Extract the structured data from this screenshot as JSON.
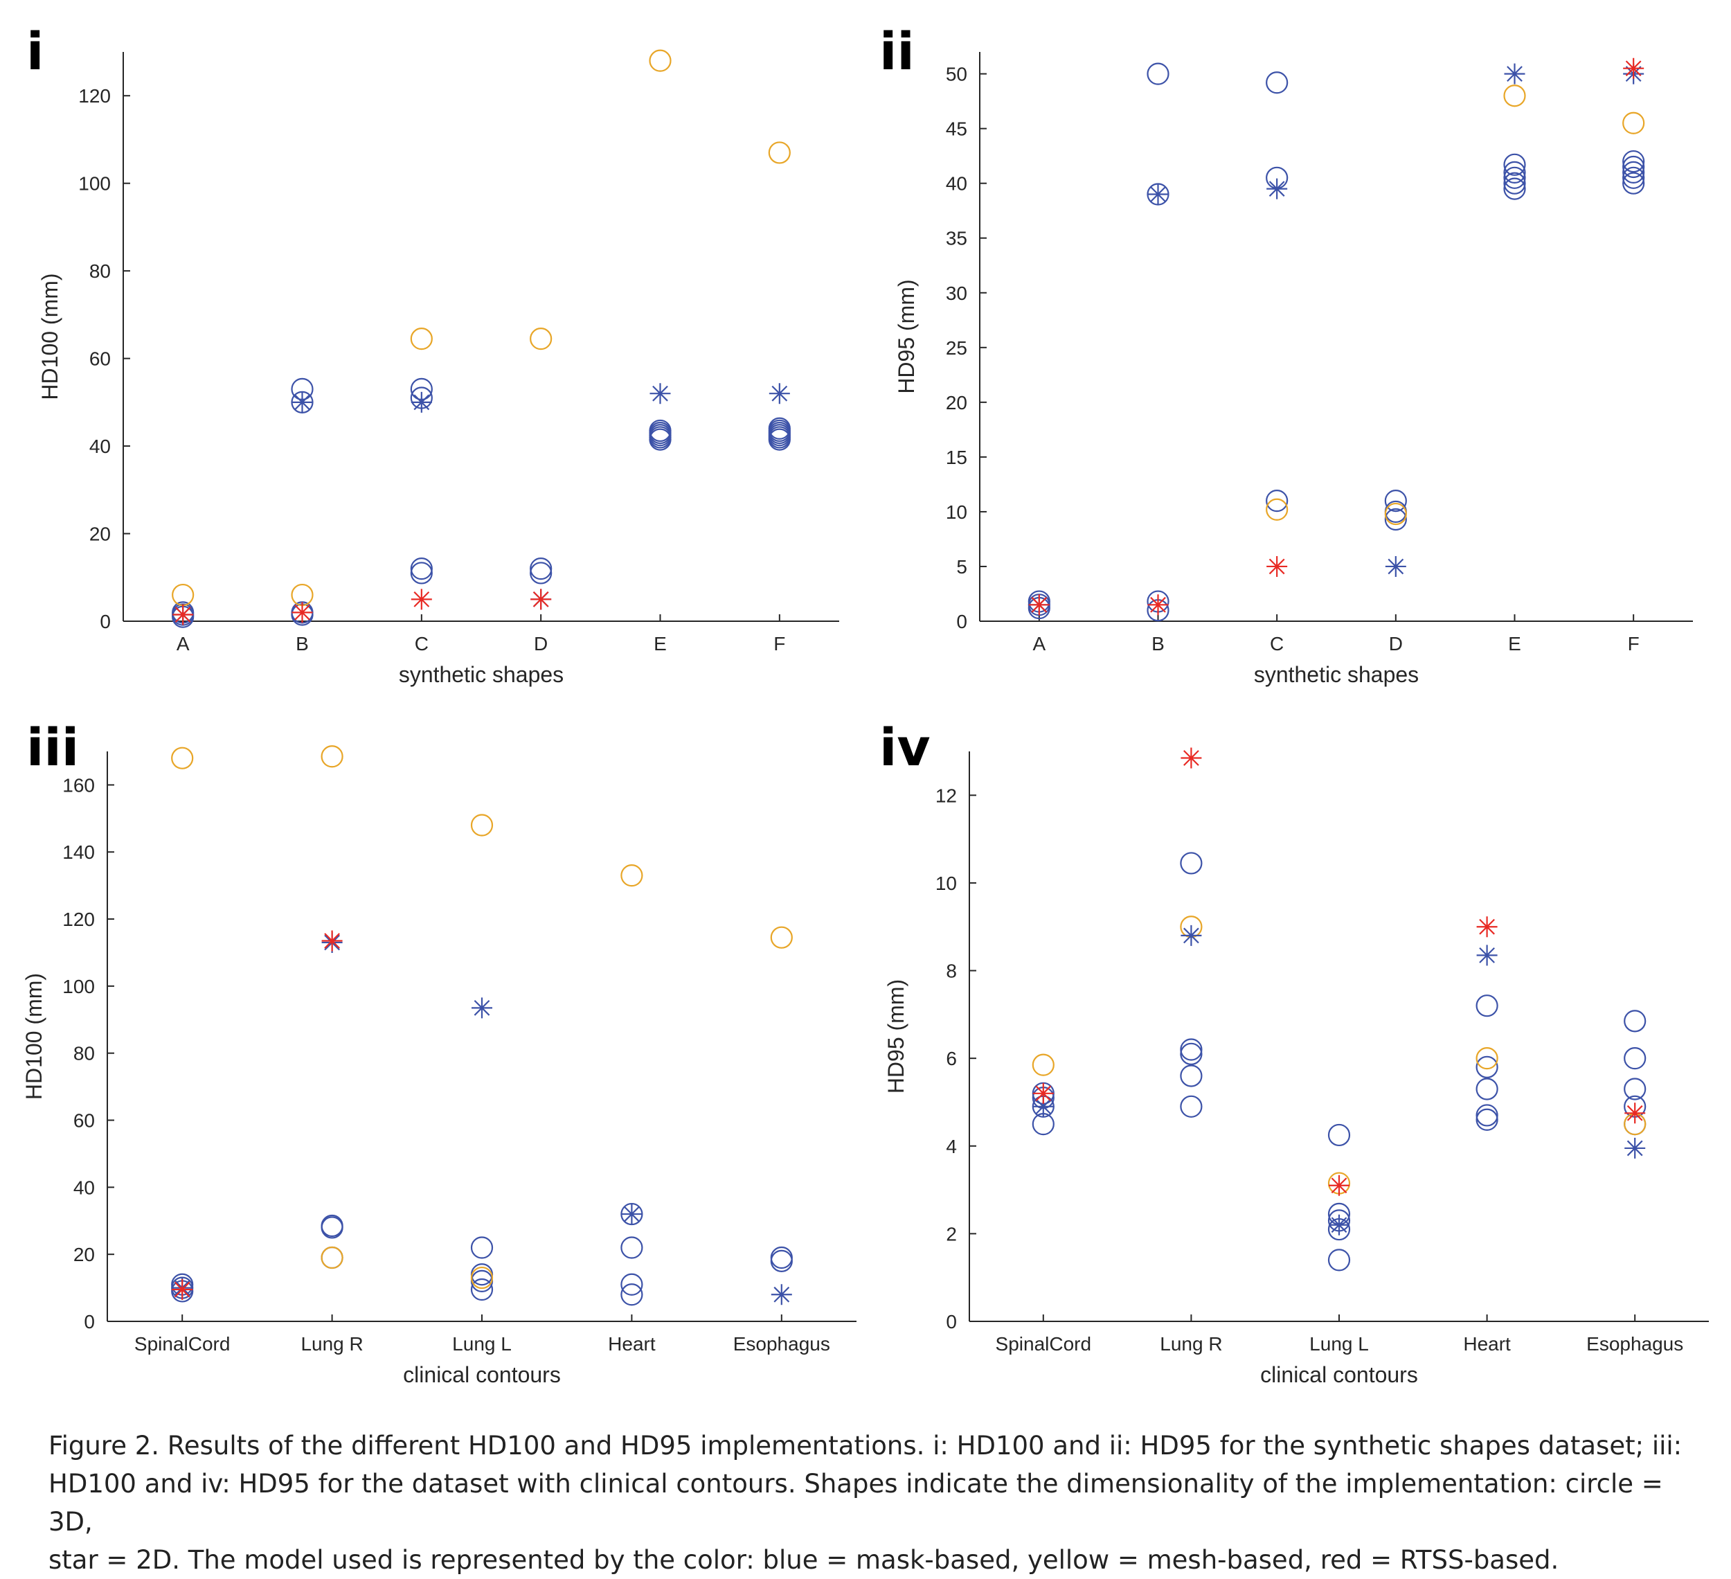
{
  "figure": {
    "caption_lines": [
      "Figure 2. Results of the different HD100 and HD95 implementations. i: HD100 and ii: HD95 for the synthetic shapes dataset; iii:",
      "HD100 and iv: HD95 for the dataset with clinical contours. Shapes indicate the dimensionality of the implementation: circle = 3D,",
      "star = 2D. The model used is represented by the color: blue = mask-based, yellow = mesh-based, red = RTSS-based."
    ]
  },
  "colors": {
    "mask": "#3c52a8",
    "mesh": "#e8a628",
    "rtss": "#e82a24"
  },
  "chart_data": [
    {
      "panel": "i",
      "type": "scatter",
      "xlabel": "synthetic shapes",
      "ylabel": "HD100 (mm)",
      "categories": [
        "A",
        "B",
        "C",
        "D",
        "E",
        "F"
      ],
      "ylim": [
        0,
        130
      ],
      "yticks": [
        0,
        20,
        40,
        60,
        80,
        100,
        120
      ],
      "series": [
        {
          "model": "mask",
          "marker": "circle",
          "points": [
            [
              "A",
              1
            ],
            [
              "A",
              1.5
            ],
            [
              "A",
              2
            ],
            [
              "B",
              1.5
            ],
            [
              "B",
              2
            ],
            [
              "B",
              50
            ],
            [
              "B",
              53
            ],
            [
              "C",
              11
            ],
            [
              "C",
              12
            ],
            [
              "C",
              51
            ],
            [
              "C",
              53
            ],
            [
              "D",
              11
            ],
            [
              "D",
              12
            ],
            [
              "E",
              41.5
            ],
            [
              "E",
              42
            ],
            [
              "E",
              42.5
            ],
            [
              "E",
              43
            ],
            [
              "E",
              43.5
            ],
            [
              "F",
              41.5
            ],
            [
              "F",
              42
            ],
            [
              "F",
              42.5
            ],
            [
              "F",
              43
            ],
            [
              "F",
              43.5
            ],
            [
              "F",
              44
            ]
          ]
        },
        {
          "model": "mesh",
          "marker": "circle",
          "points": [
            [
              "A",
              6
            ],
            [
              "B",
              6
            ],
            [
              "C",
              64.5
            ],
            [
              "D",
              64.5
            ],
            [
              "E",
              128
            ],
            [
              "F",
              107
            ]
          ]
        },
        {
          "model": "mask",
          "marker": "star",
          "points": [
            [
              "A",
              1.5
            ],
            [
              "B",
              50
            ],
            [
              "C",
              50
            ],
            [
              "D",
              5
            ],
            [
              "E",
              52
            ],
            [
              "F",
              52
            ]
          ]
        },
        {
          "model": "rtss",
          "marker": "star",
          "points": [
            [
              "A",
              1.5
            ],
            [
              "B",
              2
            ],
            [
              "C",
              5
            ],
            [
              "D",
              5
            ]
          ]
        }
      ]
    },
    {
      "panel": "ii",
      "type": "scatter",
      "xlabel": "synthetic shapes",
      "ylabel": "HD95 (mm)",
      "categories": [
        "A",
        "B",
        "C",
        "D",
        "E",
        "F"
      ],
      "ylim": [
        0,
        52
      ],
      "yticks": [
        0,
        5,
        10,
        15,
        20,
        25,
        30,
        35,
        40,
        45,
        50
      ],
      "series": [
        {
          "model": "mask",
          "marker": "circle",
          "points": [
            [
              "A",
              1.2
            ],
            [
              "A",
              1.5
            ],
            [
              "A",
              1.8
            ],
            [
              "B",
              1
            ],
            [
              "B",
              1.8
            ],
            [
              "B",
              39
            ],
            [
              "B",
              50
            ],
            [
              "C",
              11
            ],
            [
              "C",
              40.5
            ],
            [
              "C",
              49.2
            ],
            [
              "D",
              9.3
            ],
            [
              "D",
              10
            ],
            [
              "D",
              11
            ],
            [
              "E",
              39.5
            ],
            [
              "E",
              40
            ],
            [
              "E",
              40.5
            ],
            [
              "E",
              41
            ],
            [
              "E",
              41.7
            ],
            [
              "F",
              40
            ],
            [
              "F",
              40.5
            ],
            [
              "F",
              41
            ],
            [
              "F",
              41.5
            ],
            [
              "F",
              42
            ]
          ]
        },
        {
          "model": "mesh",
          "marker": "circle",
          "points": [
            [
              "C",
              10.2
            ],
            [
              "D",
              9.8
            ],
            [
              "E",
              48
            ],
            [
              "F",
              45.5
            ]
          ]
        },
        {
          "model": "mask",
          "marker": "star",
          "points": [
            [
              "A",
              1.5
            ],
            [
              "B",
              39
            ],
            [
              "C",
              39.5
            ],
            [
              "D",
              5
            ],
            [
              "E",
              50
            ],
            [
              "F",
              50
            ]
          ]
        },
        {
          "model": "rtss",
          "marker": "star",
          "points": [
            [
              "A",
              1.5
            ],
            [
              "B",
              1.5
            ],
            [
              "C",
              5
            ],
            [
              "F",
              50.5
            ]
          ]
        }
      ]
    },
    {
      "panel": "iii",
      "type": "scatter",
      "xlabel": "clinical contours",
      "ylabel": "HD100 (mm)",
      "categories": [
        "SpinalCord",
        "Lung R",
        "Lung L",
        "Heart",
        "Esophagus"
      ],
      "ylim": [
        0,
        170
      ],
      "yticks": [
        0,
        20,
        40,
        60,
        80,
        100,
        120,
        140,
        160
      ],
      "series": [
        {
          "model": "mask",
          "marker": "circle",
          "points": [
            [
              "SpinalCord",
              9
            ],
            [
              "SpinalCord",
              10
            ],
            [
              "SpinalCord",
              11
            ],
            [
              "Lung R",
              28
            ],
            [
              "Lung R",
              28.5
            ],
            [
              "Lung R",
              19
            ],
            [
              "Lung L",
              9.5
            ],
            [
              "Lung L",
              12
            ],
            [
              "Lung L",
              14
            ],
            [
              "Lung L",
              22
            ],
            [
              "Heart",
              8
            ],
            [
              "Heart",
              11
            ],
            [
              "Heart",
              22
            ],
            [
              "Heart",
              32
            ],
            [
              "Esophagus",
              18
            ],
            [
              "Esophagus",
              19
            ]
          ]
        },
        {
          "model": "mesh",
          "marker": "circle",
          "points": [
            [
              "SpinalCord",
              168
            ],
            [
              "Lung R",
              168.5
            ],
            [
              "Lung R",
              19
            ],
            [
              "Lung L",
              148
            ],
            [
              "Lung L",
              13
            ],
            [
              "Heart",
              133
            ],
            [
              "Esophagus",
              114.5
            ]
          ]
        },
        {
          "model": "mask",
          "marker": "star",
          "points": [
            [
              "SpinalCord",
              10
            ],
            [
              "Lung R",
              113
            ],
            [
              "Lung L",
              93.5
            ],
            [
              "Heart",
              32
            ],
            [
              "Esophagus",
              8
            ]
          ]
        },
        {
          "model": "rtss",
          "marker": "star",
          "points": [
            [
              "SpinalCord",
              9.5
            ],
            [
              "Lung R",
              113.5
            ]
          ]
        }
      ]
    },
    {
      "panel": "iv",
      "type": "scatter",
      "xlabel": "clinical contours",
      "ylabel": "HD95 (mm)",
      "categories": [
        "SpinalCord",
        "Lung R",
        "Lung L",
        "Heart",
        "Esophagus"
      ],
      "ylim": [
        0,
        13
      ],
      "yticks": [
        0,
        2,
        4,
        6,
        8,
        10,
        12
      ],
      "series": [
        {
          "model": "mask",
          "marker": "circle",
          "points": [
            [
              "SpinalCord",
              4.5
            ],
            [
              "SpinalCord",
              4.9
            ],
            [
              "SpinalCord",
              5.1
            ],
            [
              "SpinalCord",
              5.2
            ],
            [
              "Lung R",
              4.9
            ],
            [
              "Lung R",
              5.6
            ],
            [
              "Lung R",
              6.1
            ],
            [
              "Lung R",
              6.2
            ],
            [
              "Lung R",
              10.45
            ],
            [
              "Lung L",
              1.4
            ],
            [
              "Lung L",
              2.1
            ],
            [
              "Lung L",
              2.3
            ],
            [
              "Lung L",
              2.45
            ],
            [
              "Lung L",
              4.25
            ],
            [
              "Heart",
              4.6
            ],
            [
              "Heart",
              4.7
            ],
            [
              "Heart",
              5.3
            ],
            [
              "Heart",
              5.8
            ],
            [
              "Heart",
              7.2
            ],
            [
              "Esophagus",
              4.5
            ],
            [
              "Esophagus",
              4.9
            ],
            [
              "Esophagus",
              5.3
            ],
            [
              "Esophagus",
              6
            ],
            [
              "Esophagus",
              6.85
            ]
          ]
        },
        {
          "model": "mesh",
          "marker": "circle",
          "points": [
            [
              "SpinalCord",
              5.85
            ],
            [
              "Lung R",
              9
            ],
            [
              "Lung L",
              3.15
            ],
            [
              "Heart",
              6
            ],
            [
              "Esophagus",
              4.5
            ]
          ]
        },
        {
          "model": "mask",
          "marker": "star",
          "points": [
            [
              "SpinalCord",
              4.9
            ],
            [
              "Lung R",
              8.8
            ],
            [
              "Lung L",
              2.2
            ],
            [
              "Heart",
              8.35
            ],
            [
              "Esophagus",
              3.95
            ]
          ]
        },
        {
          "model": "rtss",
          "marker": "star",
          "points": [
            [
              "SpinalCord",
              5.2
            ],
            [
              "Lung R",
              12.85
            ],
            [
              "Lung L",
              3.1
            ],
            [
              "Heart",
              9
            ],
            [
              "Esophagus",
              4.75
            ]
          ]
        }
      ]
    }
  ]
}
